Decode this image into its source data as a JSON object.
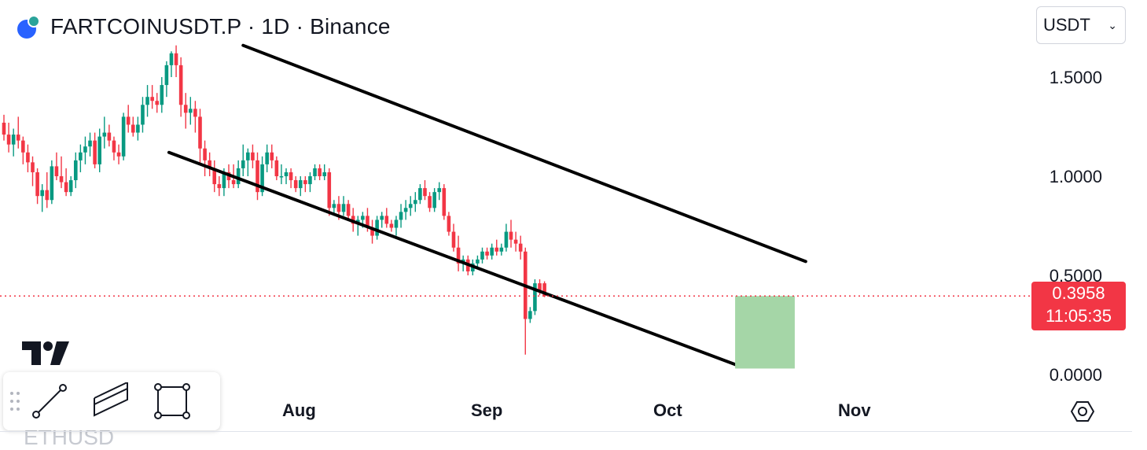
{
  "header": {
    "symbol_title": "FARTCOINUSDT.P · 1D · Binance"
  },
  "currency_select": {
    "value": "USDT"
  },
  "price_scale": {
    "ticks": [
      "1.5000",
      "1.0000",
      "0.5000",
      "0.0000"
    ]
  },
  "last_price": {
    "value": "0.3958",
    "countdown": "11:05:35"
  },
  "time_scale": {
    "ticks": [
      "Aug",
      "Sep",
      "Oct",
      "Nov"
    ]
  },
  "toolbar": {
    "tools": [
      "trend-line",
      "parallel-channel",
      "rectangle"
    ]
  },
  "peek_symbol": "ETHUSD",
  "colors": {
    "up": "#089981",
    "down": "#f23645",
    "channel": "#000000",
    "projection": "#a5d6a7",
    "price_line": "#f23645"
  },
  "chart_data": {
    "type": "candlestick",
    "interval": "1D",
    "ylim": [
      0,
      1.65
    ],
    "yticks": [
      0,
      0.5,
      1.0,
      1.5
    ],
    "xticks": [
      "Aug",
      "Sep",
      "Oct",
      "Nov"
    ],
    "last_price": 0.3958,
    "candles": [
      [
        1.27,
        1.31,
        1.18,
        1.21
      ],
      [
        1.21,
        1.27,
        1.12,
        1.16
      ],
      [
        1.16,
        1.24,
        1.1,
        1.21
      ],
      [
        1.21,
        1.3,
        1.14,
        1.18
      ],
      [
        1.18,
        1.2,
        1.06,
        1.12
      ],
      [
        1.12,
        1.16,
        1.02,
        1.07
      ],
      [
        1.07,
        1.1,
        0.95,
        1.02
      ],
      [
        1.02,
        1.04,
        0.86,
        0.9
      ],
      [
        0.9,
        0.96,
        0.82,
        0.93
      ],
      [
        0.93,
        1.02,
        0.84,
        0.88
      ],
      [
        0.88,
        1.08,
        0.86,
        1.05
      ],
      [
        1.05,
        1.12,
        0.98,
        1.0
      ],
      [
        1.0,
        1.1,
        0.94,
        0.97
      ],
      [
        0.97,
        1.04,
        0.9,
        0.92
      ],
      [
        0.92,
        1.0,
        0.9,
        0.98
      ],
      [
        0.98,
        1.12,
        0.94,
        1.08
      ],
      [
        1.08,
        1.16,
        1.02,
        1.12
      ],
      [
        1.12,
        1.2,
        1.06,
        1.15
      ],
      [
        1.15,
        1.22,
        1.1,
        1.18
      ],
      [
        1.18,
        1.22,
        1.04,
        1.06
      ],
      [
        1.06,
        1.24,
        1.02,
        1.2
      ],
      [
        1.2,
        1.3,
        1.14,
        1.22
      ],
      [
        1.22,
        1.26,
        1.15,
        1.18
      ],
      [
        1.18,
        1.2,
        1.08,
        1.12
      ],
      [
        1.12,
        1.16,
        1.06,
        1.1
      ],
      [
        1.1,
        1.32,
        1.08,
        1.3
      ],
      [
        1.3,
        1.36,
        1.22,
        1.26
      ],
      [
        1.26,
        1.3,
        1.2,
        1.22
      ],
      [
        1.22,
        1.3,
        1.18,
        1.26
      ],
      [
        1.26,
        1.4,
        1.22,
        1.36
      ],
      [
        1.36,
        1.46,
        1.3,
        1.4
      ],
      [
        1.4,
        1.46,
        1.34,
        1.38
      ],
      [
        1.38,
        1.42,
        1.32,
        1.36
      ],
      [
        1.36,
        1.5,
        1.32,
        1.46
      ],
      [
        1.46,
        1.58,
        1.4,
        1.56
      ],
      [
        1.56,
        1.63,
        1.5,
        1.62
      ],
      [
        1.62,
        1.66,
        1.5,
        1.56
      ],
      [
        1.56,
        1.6,
        1.3,
        1.36
      ],
      [
        1.36,
        1.42,
        1.24,
        1.32
      ],
      [
        1.32,
        1.4,
        1.26,
        1.34
      ],
      [
        1.34,
        1.38,
        1.22,
        1.3
      ],
      [
        1.3,
        1.34,
        1.06,
        1.14
      ],
      [
        1.14,
        1.18,
        1.0,
        1.08
      ],
      [
        1.08,
        1.12,
        1.0,
        1.04
      ],
      [
        1.04,
        1.08,
        0.92,
        0.96
      ],
      [
        0.96,
        1.0,
        0.9,
        0.94
      ],
      [
        0.94,
        1.04,
        0.9,
        1.02
      ],
      [
        1.02,
        1.06,
        0.94,
        0.98
      ],
      [
        0.98,
        1.06,
        0.94,
        0.96
      ],
      [
        0.96,
        1.08,
        0.94,
        1.04
      ],
      [
        1.04,
        1.16,
        1.0,
        1.08
      ],
      [
        1.08,
        1.14,
        1.0,
        1.12
      ],
      [
        1.12,
        1.16,
        1.04,
        1.08
      ],
      [
        1.08,
        1.12,
        0.88,
        0.92
      ],
      [
        0.92,
        1.1,
        0.9,
        1.06
      ],
      [
        1.06,
        1.16,
        1.02,
        1.12
      ],
      [
        1.12,
        1.16,
        1.04,
        1.08
      ],
      [
        1.08,
        1.1,
        0.98,
        1.0
      ],
      [
        1.0,
        1.06,
        0.96,
        1.0
      ],
      [
        1.0,
        1.04,
        0.96,
        1.02
      ],
      [
        1.02,
        1.04,
        0.94,
        0.98
      ],
      [
        0.98,
        1.0,
        0.92,
        0.94
      ],
      [
        0.94,
        1.0,
        0.9,
        0.98
      ],
      [
        0.98,
        1.0,
        0.92,
        0.96
      ],
      [
        0.96,
        1.02,
        0.92,
        1.0
      ],
      [
        1.0,
        1.06,
        0.98,
        1.04
      ],
      [
        1.04,
        1.06,
        0.98,
        1.0
      ],
      [
        1.0,
        1.06,
        0.98,
        1.02
      ],
      [
        1.02,
        1.04,
        0.8,
        0.84
      ],
      [
        0.84,
        0.88,
        0.8,
        0.86
      ],
      [
        0.86,
        0.9,
        0.78,
        0.82
      ],
      [
        0.82,
        0.9,
        0.8,
        0.86
      ],
      [
        0.86,
        0.88,
        0.78,
        0.8
      ],
      [
        0.8,
        0.84,
        0.72,
        0.76
      ],
      [
        0.76,
        0.8,
        0.7,
        0.78
      ],
      [
        0.78,
        0.82,
        0.74,
        0.8
      ],
      [
        0.8,
        0.84,
        0.72,
        0.74
      ],
      [
        0.74,
        0.78,
        0.66,
        0.7
      ],
      [
        0.7,
        0.8,
        0.68,
        0.78
      ],
      [
        0.78,
        0.82,
        0.74,
        0.8
      ],
      [
        0.8,
        0.84,
        0.74,
        0.76
      ],
      [
        0.76,
        0.78,
        0.72,
        0.74
      ],
      [
        0.74,
        0.8,
        0.7,
        0.78
      ],
      [
        0.78,
        0.86,
        0.74,
        0.82
      ],
      [
        0.82,
        0.88,
        0.78,
        0.84
      ],
      [
        0.84,
        0.9,
        0.8,
        0.86
      ],
      [
        0.86,
        0.92,
        0.82,
        0.88
      ],
      [
        0.88,
        0.96,
        0.86,
        0.94
      ],
      [
        0.94,
        0.98,
        0.88,
        0.9
      ],
      [
        0.9,
        0.92,
        0.82,
        0.84
      ],
      [
        0.84,
        0.94,
        0.82,
        0.92
      ],
      [
        0.92,
        0.97,
        0.88,
        0.94
      ],
      [
        0.94,
        0.96,
        0.78,
        0.8
      ],
      [
        0.8,
        0.82,
        0.7,
        0.72
      ],
      [
        0.72,
        0.76,
        0.62,
        0.64
      ],
      [
        0.64,
        0.7,
        0.52,
        0.56
      ],
      [
        0.56,
        0.6,
        0.52,
        0.58
      ],
      [
        0.58,
        0.6,
        0.5,
        0.52
      ],
      [
        0.52,
        0.58,
        0.5,
        0.56
      ],
      [
        0.56,
        0.6,
        0.54,
        0.58
      ],
      [
        0.58,
        0.64,
        0.56,
        0.62
      ],
      [
        0.62,
        0.64,
        0.58,
        0.6
      ],
      [
        0.6,
        0.66,
        0.58,
        0.64
      ],
      [
        0.64,
        0.68,
        0.6,
        0.62
      ],
      [
        0.62,
        0.66,
        0.6,
        0.64
      ],
      [
        0.64,
        0.76,
        0.62,
        0.72
      ],
      [
        0.72,
        0.78,
        0.64,
        0.68
      ],
      [
        0.68,
        0.72,
        0.62,
        0.66
      ],
      [
        0.66,
        0.7,
        0.58,
        0.62
      ],
      [
        0.62,
        0.64,
        0.1,
        0.28
      ],
      [
        0.28,
        0.34,
        0.26,
        0.32
      ],
      [
        0.32,
        0.48,
        0.3,
        0.46
      ],
      [
        0.46,
        0.48,
        0.4,
        0.42
      ],
      [
        0.46,
        0.47,
        0.39,
        0.3958
      ]
    ],
    "channel_upper": [
      {
        "date": "Jul 18",
        "price": 1.66
      },
      {
        "date": "Oct 23",
        "price": 0.57
      }
    ],
    "channel_lower": [
      {
        "date": "Jul 16",
        "price": 1.12
      },
      {
        "date": "Oct 15",
        "price": 0.04
      }
    ],
    "projection_box": {
      "date_from": "Oct 15",
      "date_to": "Oct 17",
      "price_from": 0.03,
      "price_to": 0.3958
    }
  }
}
